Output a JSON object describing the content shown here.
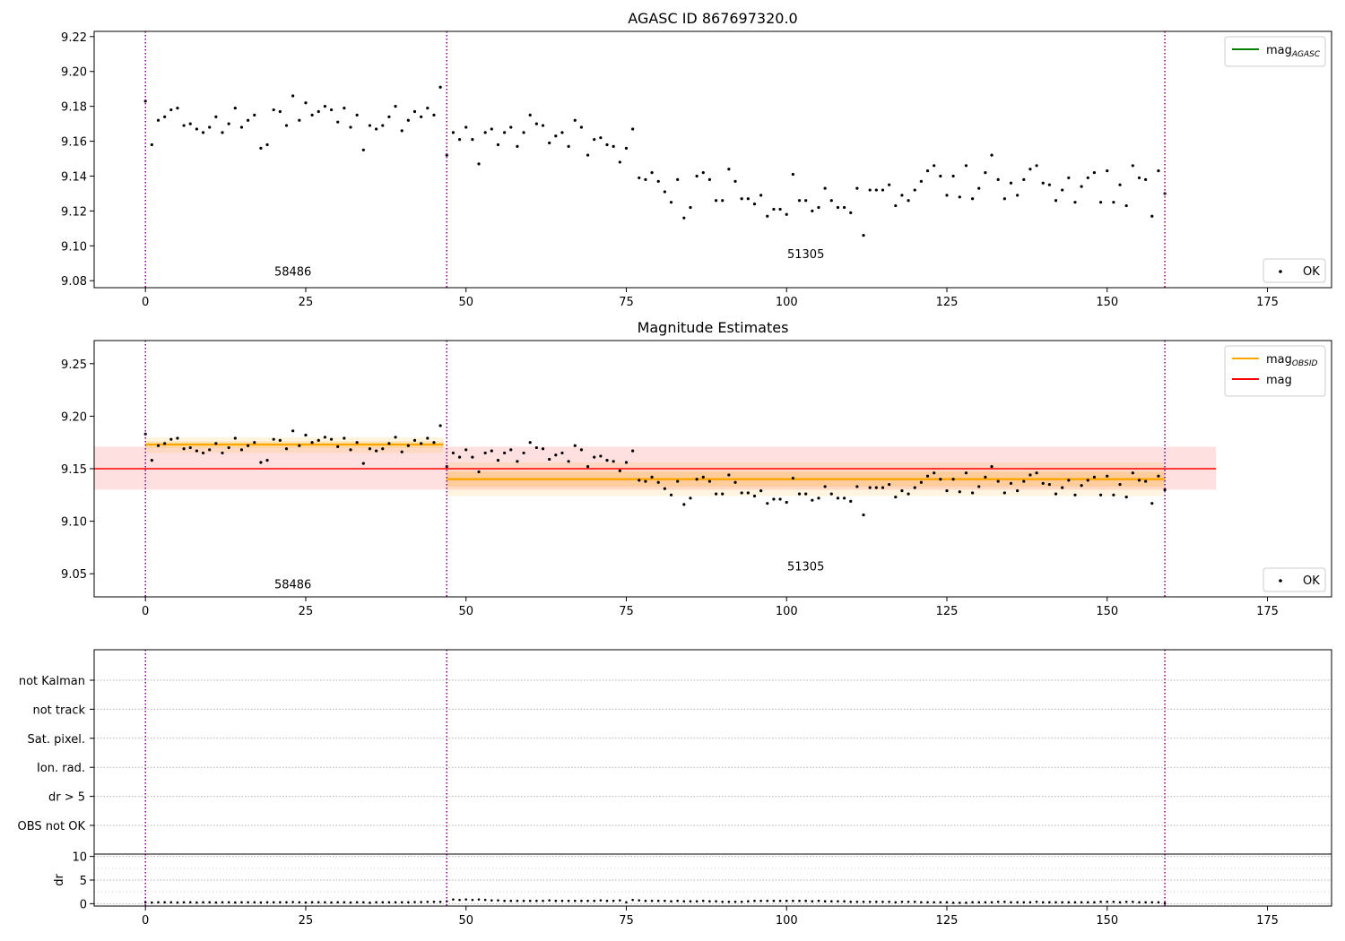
{
  "chart_data": [
    {
      "type": "scatter",
      "title": "AGASC ID 867697320.0",
      "xlim": [
        -8,
        185
      ],
      "ylim": [
        9.076,
        9.223
      ],
      "xticks": [
        0,
        25,
        50,
        75,
        100,
        125,
        150,
        175
      ],
      "yticks": [
        9.08,
        9.1,
        9.12,
        9.14,
        9.16,
        9.18,
        9.2,
        9.22
      ],
      "ytick_labels": [
        "9.08",
        "9.10",
        "9.12",
        "9.14",
        "9.16",
        "9.18",
        "9.20",
        "9.22"
      ],
      "grid": false,
      "legend_top": {
        "position": "upper-right",
        "entries": [
          {
            "label": "mag",
            "sub": "AGASC",
            "color": "#008000",
            "marker": "line"
          }
        ]
      },
      "legend_bottom": {
        "position": "lower-right",
        "entries": [
          {
            "label": "OK",
            "color": "#000000",
            "marker": "dot"
          }
        ]
      },
      "obsid_boundaries": [
        0,
        47,
        159
      ],
      "obsid_labels": [
        {
          "text": "58486",
          "x": 23,
          "y": 9.083
        },
        {
          "text": "51305",
          "x": 103,
          "y": 9.093
        }
      ]
    },
    {
      "type": "scatter",
      "title": "Magnitude Estimates",
      "xlim": [
        -8,
        185
      ],
      "ylim": [
        9.028,
        9.272
      ],
      "xticks": [
        0,
        25,
        50,
        75,
        100,
        125,
        150,
        175
      ],
      "yticks": [
        9.05,
        9.1,
        9.15,
        9.2,
        9.25
      ],
      "ytick_labels": [
        "9.05",
        "9.10",
        "9.15",
        "9.20",
        "9.25"
      ],
      "grid": false,
      "legend_top": {
        "position": "upper-right",
        "entries": [
          {
            "label": "mag",
            "sub": "OBSID",
            "color": "#ffa500",
            "marker": "line"
          },
          {
            "label": "mag",
            "sub": "",
            "color": "#ff0000",
            "marker": "line"
          }
        ]
      },
      "legend_bottom": {
        "position": "lower-right",
        "entries": [
          {
            "label": "OK",
            "color": "#000000",
            "marker": "dot"
          }
        ]
      },
      "mag_line": {
        "value": 9.15,
        "low": 9.13,
        "high": 9.171,
        "x_range": [
          -8,
          167
        ],
        "color": "#ff0000"
      },
      "obsid_mags": [
        {
          "x_range": [
            0,
            46.5
          ],
          "value": 9.173,
          "low": 9.165,
          "high": 9.18,
          "inner_low": 9.17,
          "inner_high": 9.176
        },
        {
          "x_range": [
            47,
            159
          ],
          "value": 9.14,
          "low": 9.124,
          "high": 9.156,
          "inner_low": 9.133,
          "inner_high": 9.147
        }
      ],
      "obsid_boundaries": [
        0,
        47,
        159
      ],
      "obsid_labels": [
        {
          "text": "58486",
          "x": 23,
          "y": 9.036
        },
        {
          "text": "51305",
          "x": 103,
          "y": 9.053
        }
      ]
    },
    {
      "type": "scatter",
      "title": "",
      "xlim": [
        -8,
        185
      ],
      "categories": [
        "OBS not OK",
        "dr > 5",
        "Ion. rad.",
        "Sat. pixel.",
        "not track",
        "not Kalman"
      ],
      "flag_points": [],
      "grid": true,
      "obsid_boundaries": [
        0,
        47,
        159
      ]
    },
    {
      "type": "scatter",
      "title": "",
      "xlim": [
        -8,
        185
      ],
      "ylim": [
        -0.5,
        10.5
      ],
      "xticks": [
        0,
        25,
        50,
        75,
        100,
        125,
        150,
        175
      ],
      "yticks": [
        0,
        5,
        10
      ],
      "ytick_labels": [
        "0",
        "5",
        "10"
      ],
      "ylabel": "dr",
      "grid": true,
      "obsid_boundaries": [
        0,
        47,
        159
      ]
    }
  ],
  "series": {
    "mag": [
      [
        0,
        9.183
      ],
      [
        1,
        9.158
      ],
      [
        2,
        9.172
      ],
      [
        3,
        9.174
      ],
      [
        4,
        9.178
      ],
      [
        5,
        9.179
      ],
      [
        6,
        9.169
      ],
      [
        7,
        9.17
      ],
      [
        8,
        9.167
      ],
      [
        9,
        9.165
      ],
      [
        10,
        9.168
      ],
      [
        11,
        9.174
      ],
      [
        12,
        9.165
      ],
      [
        13,
        9.17
      ],
      [
        14,
        9.179
      ],
      [
        15,
        9.168
      ],
      [
        16,
        9.172
      ],
      [
        17,
        9.175
      ],
      [
        18,
        9.156
      ],
      [
        19,
        9.158
      ],
      [
        20,
        9.178
      ],
      [
        21,
        9.177
      ],
      [
        22,
        9.169
      ],
      [
        23,
        9.186
      ],
      [
        24,
        9.172
      ],
      [
        25,
        9.182
      ],
      [
        26,
        9.175
      ],
      [
        27,
        9.177
      ],
      [
        28,
        9.18
      ],
      [
        29,
        9.178
      ],
      [
        30,
        9.171
      ],
      [
        31,
        9.179
      ],
      [
        32,
        9.168
      ],
      [
        33,
        9.175
      ],
      [
        34,
        9.155
      ],
      [
        35,
        9.169
      ],
      [
        36,
        9.167
      ],
      [
        37,
        9.169
      ],
      [
        38,
        9.174
      ],
      [
        39,
        9.18
      ],
      [
        40,
        9.166
      ],
      [
        41,
        9.172
      ],
      [
        42,
        9.177
      ],
      [
        43,
        9.174
      ],
      [
        44,
        9.179
      ],
      [
        45,
        9.175
      ],
      [
        46,
        9.191
      ],
      [
        47,
        9.152
      ],
      [
        48,
        9.165
      ],
      [
        49,
        9.161
      ],
      [
        50,
        9.168
      ],
      [
        51,
        9.161
      ],
      [
        52,
        9.147
      ],
      [
        53,
        9.165
      ],
      [
        54,
        9.167
      ],
      [
        55,
        9.158
      ],
      [
        56,
        9.165
      ],
      [
        57,
        9.168
      ],
      [
        58,
        9.157
      ],
      [
        59,
        9.165
      ],
      [
        60,
        9.175
      ],
      [
        61,
        9.17
      ],
      [
        62,
        9.169
      ],
      [
        63,
        9.159
      ],
      [
        64,
        9.163
      ],
      [
        65,
        9.165
      ],
      [
        66,
        9.157
      ],
      [
        67,
        9.172
      ],
      [
        68,
        9.168
      ],
      [
        69,
        9.152
      ],
      [
        70,
        9.161
      ],
      [
        71,
        9.162
      ],
      [
        72,
        9.158
      ],
      [
        73,
        9.157
      ],
      [
        74,
        9.148
      ],
      [
        75,
        9.156
      ],
      [
        76,
        9.167
      ],
      [
        77,
        9.139
      ],
      [
        78,
        9.138
      ],
      [
        79,
        9.142
      ],
      [
        80,
        9.137
      ],
      [
        81,
        9.131
      ],
      [
        82,
        9.125
      ],
      [
        83,
        9.138
      ],
      [
        84,
        9.116
      ],
      [
        85,
        9.122
      ],
      [
        86,
        9.14
      ],
      [
        87,
        9.142
      ],
      [
        88,
        9.138
      ],
      [
        89,
        9.126
      ],
      [
        90,
        9.126
      ],
      [
        91,
        9.144
      ],
      [
        92,
        9.137
      ],
      [
        93,
        9.127
      ],
      [
        94,
        9.127
      ],
      [
        95,
        9.124
      ],
      [
        96,
        9.129
      ],
      [
        97,
        9.117
      ],
      [
        98,
        9.121
      ],
      [
        99,
        9.121
      ],
      [
        100,
        9.118
      ],
      [
        101,
        9.141
      ],
      [
        102,
        9.126
      ],
      [
        103,
        9.126
      ],
      [
        104,
        9.12
      ],
      [
        105,
        9.122
      ],
      [
        106,
        9.133
      ],
      [
        107,
        9.126
      ],
      [
        108,
        9.122
      ],
      [
        109,
        9.122
      ],
      [
        110,
        9.119
      ],
      [
        111,
        9.133
      ],
      [
        112,
        9.106
      ],
      [
        113,
        9.132
      ],
      [
        114,
        9.132
      ],
      [
        115,
        9.132
      ],
      [
        116,
        9.135
      ],
      [
        117,
        9.123
      ],
      [
        118,
        9.129
      ],
      [
        119,
        9.126
      ],
      [
        120,
        9.132
      ],
      [
        121,
        9.137
      ],
      [
        122,
        9.143
      ],
      [
        123,
        9.146
      ],
      [
        124,
        9.14
      ],
      [
        125,
        9.129
      ],
      [
        126,
        9.14
      ],
      [
        127,
        9.128
      ],
      [
        128,
        9.146
      ],
      [
        129,
        9.127
      ],
      [
        130,
        9.133
      ],
      [
        131,
        9.142
      ],
      [
        132,
        9.152
      ],
      [
        133,
        9.138
      ],
      [
        134,
        9.127
      ],
      [
        135,
        9.136
      ],
      [
        136,
        9.129
      ],
      [
        137,
        9.138
      ],
      [
        138,
        9.144
      ],
      [
        139,
        9.146
      ],
      [
        140,
        9.136
      ],
      [
        141,
        9.135
      ],
      [
        142,
        9.126
      ],
      [
        143,
        9.132
      ],
      [
        144,
        9.139
      ],
      [
        145,
        9.125
      ],
      [
        146,
        9.134
      ],
      [
        147,
        9.139
      ],
      [
        148,
        9.142
      ],
      [
        149,
        9.125
      ],
      [
        150,
        9.143
      ],
      [
        151,
        9.125
      ],
      [
        152,
        9.135
      ],
      [
        153,
        9.123
      ],
      [
        154,
        9.146
      ],
      [
        155,
        9.139
      ],
      [
        156,
        9.138
      ],
      [
        157,
        9.117
      ],
      [
        158,
        9.143
      ],
      [
        159,
        9.13
      ]
    ],
    "dr": [
      [
        0,
        0.3
      ],
      [
        1,
        0.25
      ],
      [
        2,
        0.3
      ],
      [
        3,
        0.3
      ],
      [
        4,
        0.3
      ],
      [
        5,
        0.25
      ],
      [
        6,
        0.3
      ],
      [
        7,
        0.3
      ],
      [
        8,
        0.25
      ],
      [
        9,
        0.3
      ],
      [
        10,
        0.3
      ],
      [
        11,
        0.25
      ],
      [
        12,
        0.3
      ],
      [
        13,
        0.3
      ],
      [
        14,
        0.25
      ],
      [
        15,
        0.3
      ],
      [
        16,
        0.3
      ],
      [
        17,
        0.3
      ],
      [
        18,
        0.25
      ],
      [
        19,
        0.3
      ],
      [
        20,
        0.3
      ],
      [
        21,
        0.3
      ],
      [
        22,
        0.3
      ],
      [
        23,
        0.35
      ],
      [
        24,
        0.3
      ],
      [
        25,
        0.25
      ],
      [
        26,
        0.3
      ],
      [
        27,
        0.3
      ],
      [
        28,
        0.3
      ],
      [
        29,
        0.25
      ],
      [
        30,
        0.3
      ],
      [
        31,
        0.3
      ],
      [
        32,
        0.25
      ],
      [
        33,
        0.3
      ],
      [
        34,
        0.3
      ],
      [
        35,
        0.2
      ],
      [
        36,
        0.3
      ],
      [
        37,
        0.3
      ],
      [
        38,
        0.3
      ],
      [
        39,
        0.3
      ],
      [
        40,
        0.3
      ],
      [
        41,
        0.3
      ],
      [
        42,
        0.35
      ],
      [
        43,
        0.35
      ],
      [
        44,
        0.4
      ],
      [
        45,
        0.4
      ],
      [
        46,
        0.4
      ],
      [
        47,
        0.5
      ],
      [
        48,
        0.9
      ],
      [
        49,
        0.8
      ],
      [
        50,
        0.9
      ],
      [
        51,
        0.8
      ],
      [
        52,
        0.9
      ],
      [
        53,
        0.8
      ],
      [
        54,
        0.7
      ],
      [
        55,
        0.7
      ],
      [
        56,
        0.6
      ],
      [
        57,
        0.6
      ],
      [
        58,
        0.6
      ],
      [
        59,
        0.6
      ],
      [
        60,
        0.6
      ],
      [
        61,
        0.6
      ],
      [
        62,
        0.6
      ],
      [
        63,
        0.7
      ],
      [
        64,
        0.6
      ],
      [
        65,
        0.6
      ],
      [
        66,
        0.6
      ],
      [
        67,
        0.6
      ],
      [
        68,
        0.6
      ],
      [
        69,
        0.6
      ],
      [
        70,
        0.6
      ],
      [
        71,
        0.7
      ],
      [
        72,
        0.6
      ],
      [
        73,
        0.6
      ],
      [
        74,
        0.7
      ],
      [
        75,
        0.3
      ],
      [
        76,
        0.8
      ],
      [
        77,
        0.7
      ],
      [
        78,
        0.6
      ],
      [
        79,
        0.6
      ],
      [
        80,
        0.6
      ],
      [
        81,
        0.6
      ],
      [
        82,
        0.5
      ],
      [
        83,
        0.6
      ],
      [
        84,
        0.5
      ],
      [
        85,
        0.5
      ],
      [
        86,
        0.5
      ],
      [
        87,
        0.6
      ],
      [
        88,
        0.5
      ],
      [
        89,
        0.5
      ],
      [
        90,
        0.4
      ],
      [
        91,
        0.4
      ],
      [
        92,
        0.4
      ],
      [
        93,
        0.4
      ],
      [
        94,
        0.5
      ],
      [
        95,
        0.6
      ],
      [
        96,
        0.6
      ],
      [
        97,
        0.6
      ],
      [
        98,
        0.6
      ],
      [
        99,
        0.6
      ],
      [
        100,
        0.6
      ],
      [
        101,
        0.6
      ],
      [
        102,
        0.6
      ],
      [
        103,
        0.6
      ],
      [
        104,
        0.5
      ],
      [
        105,
        0.6
      ],
      [
        106,
        0.5
      ],
      [
        107,
        0.5
      ],
      [
        108,
        0.5
      ],
      [
        109,
        0.5
      ],
      [
        110,
        0.4
      ],
      [
        111,
        0.4
      ],
      [
        112,
        0.4
      ],
      [
        113,
        0.4
      ],
      [
        114,
        0.4
      ],
      [
        115,
        0.4
      ],
      [
        116,
        0.4
      ],
      [
        117,
        0.3
      ],
      [
        118,
        0.4
      ],
      [
        119,
        0.4
      ],
      [
        120,
        0.4
      ],
      [
        121,
        0.3
      ],
      [
        122,
        0.3
      ],
      [
        123,
        0.3
      ],
      [
        124,
        0.3
      ],
      [
        125,
        0.3
      ],
      [
        126,
        0.2
      ],
      [
        127,
        0.2
      ],
      [
        128,
        0.2
      ],
      [
        129,
        0.3
      ],
      [
        130,
        0.3
      ],
      [
        131,
        0.3
      ],
      [
        132,
        0.3
      ],
      [
        133,
        0.4
      ],
      [
        134,
        0.4
      ],
      [
        135,
        0.3
      ],
      [
        136,
        0.3
      ],
      [
        137,
        0.3
      ],
      [
        138,
        0.3
      ],
      [
        139,
        0.4
      ],
      [
        140,
        0.3
      ],
      [
        141,
        0.3
      ],
      [
        142,
        0.3
      ],
      [
        143,
        0.3
      ],
      [
        144,
        0.3
      ],
      [
        145,
        0.3
      ],
      [
        146,
        0.3
      ],
      [
        147,
        0.3
      ],
      [
        148,
        0.3
      ],
      [
        149,
        0.4
      ],
      [
        150,
        0.4
      ],
      [
        151,
        0.4
      ],
      [
        152,
        0.3
      ],
      [
        153,
        0.4
      ],
      [
        154,
        0.4
      ],
      [
        155,
        0.3
      ],
      [
        156,
        0.3
      ],
      [
        157,
        0.3
      ],
      [
        158,
        0.3
      ],
      [
        159,
        0.1
      ]
    ]
  }
}
